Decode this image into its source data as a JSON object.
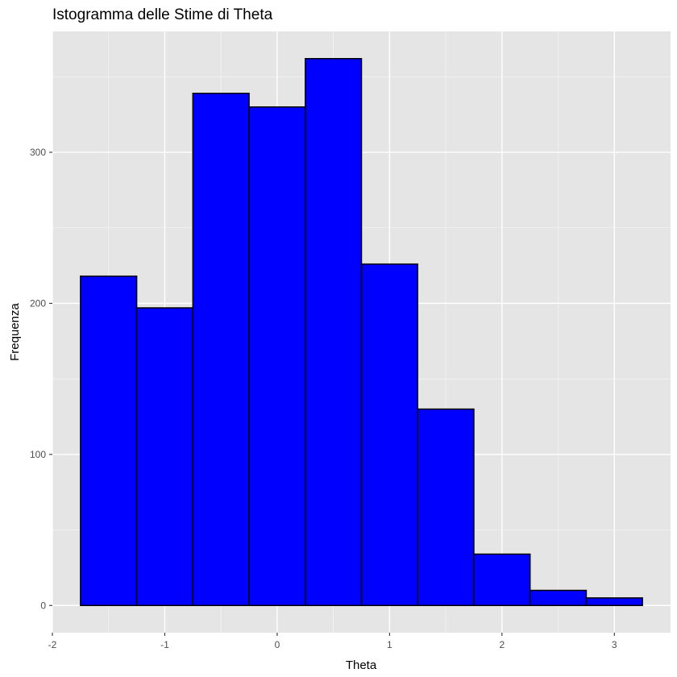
{
  "chart_data": {
    "type": "bar",
    "title": "Istogramma delle Stime di Theta",
    "xlabel": "Theta",
    "ylabel": "Frequenza",
    "bins": [
      {
        "x_start": -1.75,
        "x_end": -1.25,
        "count": 218
      },
      {
        "x_start": -1.25,
        "x_end": -0.75,
        "count": 197
      },
      {
        "x_start": -0.75,
        "x_end": -0.25,
        "count": 339
      },
      {
        "x_start": -0.25,
        "x_end": 0.25,
        "count": 330
      },
      {
        "x_start": 0.25,
        "x_end": 0.75,
        "count": 362
      },
      {
        "x_start": 0.75,
        "x_end": 1.25,
        "count": 226
      },
      {
        "x_start": 1.25,
        "x_end": 1.75,
        "count": 130
      },
      {
        "x_start": 1.75,
        "x_end": 2.25,
        "count": 34
      },
      {
        "x_start": 2.25,
        "x_end": 2.75,
        "count": 10
      },
      {
        "x_start": 2.75,
        "x_end": 3.25,
        "count": 5
      }
    ],
    "xlim": [
      -2,
      3.5
    ],
    "ylim": [
      -18,
      380
    ],
    "x_ticks": [
      -2,
      -1,
      0,
      1,
      2,
      3
    ],
    "x_tick_labels": [
      "-2",
      "-1",
      "0",
      "1",
      "2",
      "3"
    ],
    "y_ticks": [
      0,
      100,
      200,
      300
    ],
    "y_tick_labels": [
      "0",
      "100",
      "200",
      "300"
    ],
    "x_minor_ticks": [
      -1.5,
      -0.5,
      0.5,
      1.5,
      2.5
    ],
    "y_minor_ticks": [
      50,
      150,
      250,
      350
    ],
    "grid": true,
    "colors": {
      "bar_fill": "#0000ff",
      "bar_stroke": "#000000",
      "panel_background": "#e5e5e5",
      "grid_major": "#ffffff",
      "tick_text": "#4d4d4d"
    }
  }
}
